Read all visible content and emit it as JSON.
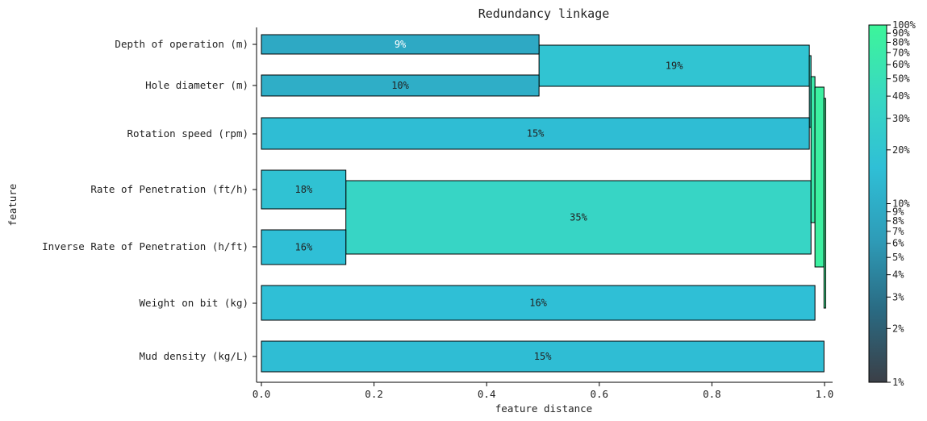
{
  "chart_data": {
    "type": "bar",
    "orientation": "horizontal",
    "title": "Redundancy linkage",
    "xlabel": "feature distance",
    "ylabel": "feature",
    "xlim": [
      0,
      1
    ],
    "xticks": [
      "0.0",
      "0.2",
      "0.4",
      "0.6",
      "0.8",
      "1.0"
    ],
    "features": [
      "Depth of operation (m)",
      "Hole diameter (m)",
      "Rotation speed (rpm)",
      "Rate of Penetration (ft/h)",
      "Inverse Rate of Penetration (h/ft)",
      "Weight on bit (kg)",
      "Mud density (kg/L)"
    ],
    "leaf_bars": [
      {
        "feature": "Depth of operation (m)",
        "value": 0.493,
        "label": "9%",
        "pct": 9
      },
      {
        "feature": "Hole diameter (m)",
        "value": 0.493,
        "label": "10%",
        "pct": 10
      },
      {
        "feature": "Rotation speed (rpm)",
        "value": 0.973,
        "label": "15%",
        "pct": 15
      },
      {
        "feature": "Rate of Penetration (ft/h)",
        "value": 0.15,
        "label": "18%",
        "pct": 18
      },
      {
        "feature": "Inverse Rate of Penetration (h/ft)",
        "value": 0.15,
        "label": "16%",
        "pct": 16
      },
      {
        "feature": "Weight on bit (kg)",
        "value": 0.983,
        "label": "16%",
        "pct": 16
      },
      {
        "feature": "Mud density (kg/L)",
        "value": 0.999,
        "label": "15%",
        "pct": 15
      }
    ],
    "merge_bars": [
      {
        "members": [
          "Depth of operation (m)",
          "Hole diameter (m)"
        ],
        "start": 0.493,
        "end": 0.973,
        "label": "19%",
        "pct": 19
      },
      {
        "members": [
          "Rate of Penetration (ft/h)",
          "Inverse Rate of Penetration (h/ft)"
        ],
        "start": 0.15,
        "end": 0.976,
        "label": "35%",
        "pct": 35
      },
      {
        "members": [
          "Depth of operation (m)",
          "Hole diameter (m)",
          "Rotation speed (rpm)"
        ],
        "start": 0.973,
        "end": 0.976,
        "label": "",
        "pct": 34
      },
      {
        "members": [
          "Depth of operation (m)",
          "Hole diameter (m)",
          "Rotation speed (rpm)",
          "Rate of Penetration (ft/h)",
          "Inverse Rate of Penetration (h/ft)"
        ],
        "start": 0.976,
        "end": 0.983,
        "label": "",
        "pct": 69
      },
      {
        "members": [
          "Depth of operation (m)",
          "Hole diameter (m)",
          "Rotation speed (rpm)",
          "Rate of Penetration (ft/h)",
          "Inverse Rate of Penetration (h/ft)",
          "Weight on bit (kg)"
        ],
        "start": 0.983,
        "end": 0.999,
        "label": "",
        "pct": 85
      },
      {
        "members": [
          "Depth of operation (m)",
          "Hole diameter (m)",
          "Rotation speed (rpm)",
          "Rate of Penetration (ft/h)",
          "Inverse Rate of Penetration (h/ft)",
          "Weight on bit (kg)",
          "Mud density (kg/L)"
        ],
        "start": 0.999,
        "end": 1.002,
        "label": "",
        "pct": 100
      }
    ],
    "colorbar": {
      "scale": "log",
      "range_pct": [
        1,
        100
      ],
      "ticks": [
        {
          "value": 1,
          "label": "1%"
        },
        {
          "value": 2,
          "label": "2%"
        },
        {
          "value": 3,
          "label": "3%"
        },
        {
          "value": 4,
          "label": "4%"
        },
        {
          "value": 5,
          "label": "5%"
        },
        {
          "value": 6,
          "label": "6%"
        },
        {
          "value": 7,
          "label": "7%"
        },
        {
          "value": 8,
          "label": "8%"
        },
        {
          "value": 9,
          "label": "9%"
        },
        {
          "value": 10,
          "label": "10%"
        },
        {
          "value": 20,
          "label": "20%"
        },
        {
          "value": 30,
          "label": "30%"
        },
        {
          "value": 40,
          "label": "40%"
        },
        {
          "value": 50,
          "label": "50%"
        },
        {
          "value": 60,
          "label": "60%"
        },
        {
          "value": 70,
          "label": "70%"
        },
        {
          "value": 80,
          "label": "80%"
        },
        {
          "value": 90,
          "label": "90%"
        },
        {
          "value": 100,
          "label": "100%"
        }
      ],
      "colors": [
        "#3b3f47",
        "#2a6a82",
        "#2e9cb8",
        "#2fbfd6",
        "#38d8c2",
        "#3df59a"
      ]
    },
    "grid": false,
    "legend": "colorbar-right"
  }
}
